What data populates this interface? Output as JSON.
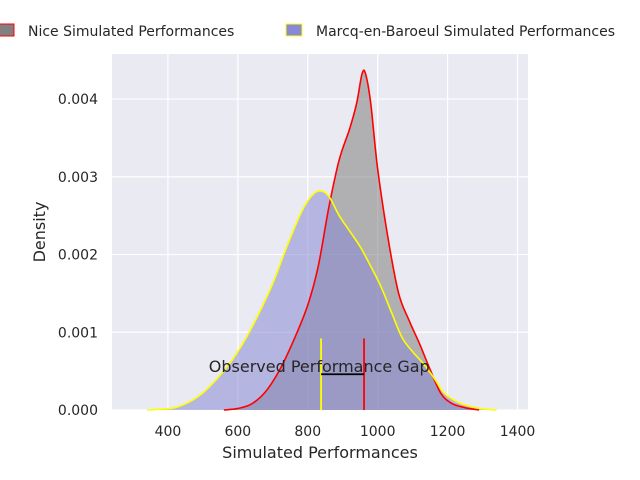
{
  "chart_data": {
    "type": "area",
    "title": "",
    "xlabel": "Simulated Performances",
    "ylabel": "Density",
    "xlim": [
      240,
      1430
    ],
    "ylim": [
      0,
      0.00458
    ],
    "xticks": [
      400,
      600,
      800,
      1000,
      1200,
      1400
    ],
    "xtick_labels": [
      "400",
      "600",
      "800",
      "1000",
      "1200",
      "1400"
    ],
    "yticks": [
      0,
      0.001,
      0.002,
      0.003,
      0.004
    ],
    "ytick_labels": [
      "0.000",
      "0.001",
      "0.002",
      "0.003",
      "0.004"
    ],
    "grid": true,
    "legend_position": "top",
    "series": [
      {
        "name": "Nice Simulated Performances",
        "fill": "#808080",
        "edge": "#ff0000",
        "points": [
          [
            560,
            0
          ],
          [
            600,
            2e-05
          ],
          [
            640,
            8e-05
          ],
          [
            680,
            0.00024
          ],
          [
            720,
            0.00052
          ],
          [
            760,
            0.0009
          ],
          [
            800,
            0.00135
          ],
          [
            830,
            0.00185
          ],
          [
            860,
            0.0026
          ],
          [
            890,
            0.00322
          ],
          [
            920,
            0.00362
          ],
          [
            940,
            0.00395
          ],
          [
            955,
            0.00432
          ],
          [
            965,
            0.00433
          ],
          [
            980,
            0.00395
          ],
          [
            1000,
            0.0031
          ],
          [
            1030,
            0.0022
          ],
          [
            1060,
            0.0015
          ],
          [
            1090,
            0.00115
          ],
          [
            1120,
            0.00085
          ],
          [
            1150,
            0.00052
          ],
          [
            1180,
            0.00022
          ],
          [
            1210,
            9e-05
          ],
          [
            1250,
            3e-05
          ],
          [
            1290,
            0
          ]
        ]
      },
      {
        "name": "Marcq-en-Baroeul Simulated Performances",
        "fill": "#8888d4",
        "edge": "#ffff00",
        "points": [
          [
            340,
            0
          ],
          [
            380,
            1e-05
          ],
          [
            420,
            3e-05
          ],
          [
            460,
            0.0001
          ],
          [
            500,
            0.00022
          ],
          [
            540,
            0.0004
          ],
          [
            580,
            0.00062
          ],
          [
            620,
            0.0009
          ],
          [
            660,
            0.00124
          ],
          [
            700,
            0.00163
          ],
          [
            740,
            0.0021
          ],
          [
            780,
            0.00253
          ],
          [
            810,
            0.00275
          ],
          [
            835,
            0.00282
          ],
          [
            860,
            0.00275
          ],
          [
            890,
            0.0025
          ],
          [
            920,
            0.0023
          ],
          [
            950,
            0.0021
          ],
          [
            980,
            0.00185
          ],
          [
            1010,
            0.00158
          ],
          [
            1040,
            0.00125
          ],
          [
            1070,
            0.00093
          ],
          [
            1100,
            0.00075
          ],
          [
            1130,
            0.0006
          ],
          [
            1160,
            0.00042
          ],
          [
            1190,
            0.00022
          ],
          [
            1230,
            0.0001
          ],
          [
            1270,
            4e-05
          ],
          [
            1310,
            1e-05
          ],
          [
            1340,
            0
          ]
        ]
      }
    ],
    "vlines": [
      {
        "x": 838,
        "ymin": 0,
        "ymax": 0.00092,
        "color": "#ffff00"
      },
      {
        "x": 961,
        "ymin": 0,
        "ymax": 0.00092,
        "color": "#ff0000"
      }
    ],
    "gap_line": {
      "x1": 838,
      "x2": 961,
      "y": 0.00046,
      "color": "#000000"
    },
    "annotation": {
      "text": "Observed Performance Gap",
      "x": 850,
      "y": 0.00046
    }
  }
}
